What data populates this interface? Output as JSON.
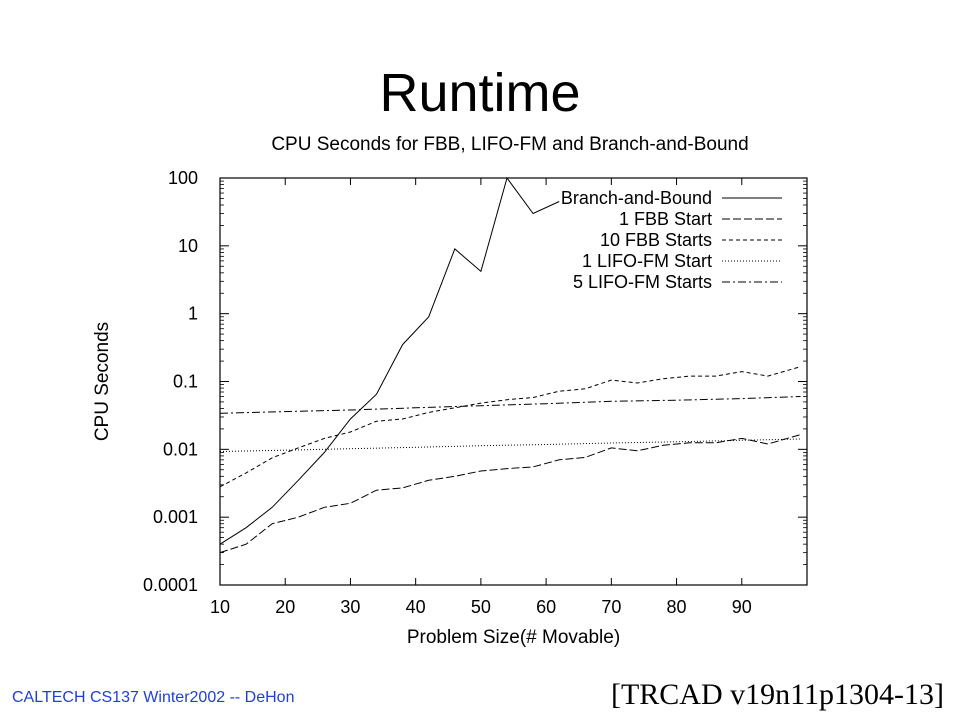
{
  "slide": {
    "title": "Runtime",
    "footer_left": "CALTECH CS137 Winter2002 -- DeHon",
    "footer_right": "[TRCAD v19n11p1304-13]",
    "footer_left_color": "#1f3fd8"
  },
  "chart_data": {
    "type": "line",
    "title": "CPU Seconds for FBB, LIFO-FM and Branch-and-Bound",
    "xlabel": "Problem Size(# Movable)",
    "ylabel": "CPU Seconds",
    "xlim": [
      10,
      100
    ],
    "ylim": [
      0.0001,
      100
    ],
    "yscale": "log",
    "xticks": [
      10,
      20,
      30,
      40,
      50,
      60,
      70,
      80,
      90
    ],
    "yticks": [
      {
        "value": 0.0001,
        "label": "0.0001"
      },
      {
        "value": 0.001,
        "label": "0.001"
      },
      {
        "value": 0.01,
        "label": "0.01"
      },
      {
        "value": 0.1,
        "label": "0.1"
      },
      {
        "value": 1,
        "label": "1"
      },
      {
        "value": 10,
        "label": "10"
      },
      {
        "value": 100,
        "label": "100"
      }
    ],
    "grid": false,
    "legend": "top-right",
    "series": [
      {
        "name": "Branch-and-Bound",
        "dash": "",
        "x": [
          10,
          14,
          18,
          22,
          26,
          30,
          34,
          38,
          42,
          46,
          50,
          54,
          58,
          62
        ],
        "y": [
          0.0004,
          0.0007,
          0.0014,
          0.0035,
          0.009,
          0.028,
          0.065,
          0.35,
          0.9,
          9,
          4.2,
          100,
          30,
          45
        ]
      },
      {
        "name": "1 FBB Start",
        "dash": "8,3",
        "x": [
          10,
          14,
          18,
          22,
          26,
          30,
          34,
          38,
          42,
          46,
          50,
          54,
          58,
          62,
          66,
          70,
          74,
          78,
          82,
          86,
          90,
          94,
          99
        ],
        "y": [
          0.0003,
          0.0004,
          0.0008,
          0.001,
          0.0014,
          0.0016,
          0.0025,
          0.0027,
          0.0035,
          0.004,
          0.0048,
          0.0052,
          0.0055,
          0.007,
          0.0076,
          0.0105,
          0.0095,
          0.0115,
          0.0125,
          0.0125,
          0.0145,
          0.012,
          0.0165
        ]
      },
      {
        "name": "10 FBB Starts",
        "dash": "4,3",
        "x": [
          10,
          14,
          18,
          22,
          26,
          30,
          34,
          38,
          42,
          46,
          50,
          54,
          58,
          62,
          66,
          70,
          74,
          78,
          82,
          86,
          90,
          94,
          99
        ],
        "y": [
          0.0028,
          0.0045,
          0.0075,
          0.0105,
          0.0145,
          0.018,
          0.026,
          0.028,
          0.035,
          0.041,
          0.048,
          0.054,
          0.058,
          0.072,
          0.078,
          0.105,
          0.095,
          0.11,
          0.12,
          0.12,
          0.14,
          0.12,
          0.165
        ]
      },
      {
        "name": "1 LIFO-FM Start",
        "dash": "1,2",
        "x": [
          10,
          20,
          30,
          40,
          50,
          60,
          70,
          80,
          90,
          99
        ],
        "y": [
          0.0093,
          0.0097,
          0.0102,
          0.0107,
          0.0113,
          0.0118,
          0.0124,
          0.0129,
          0.0136,
          0.0142
        ]
      },
      {
        "name": "5 LIFO-FM Starts",
        "dash": "8,3,2,3",
        "x": [
          10,
          20,
          30,
          40,
          50,
          60,
          70,
          80,
          90,
          99
        ],
        "y": [
          0.034,
          0.036,
          0.038,
          0.041,
          0.044,
          0.047,
          0.051,
          0.053,
          0.056,
          0.06
        ]
      }
    ]
  }
}
